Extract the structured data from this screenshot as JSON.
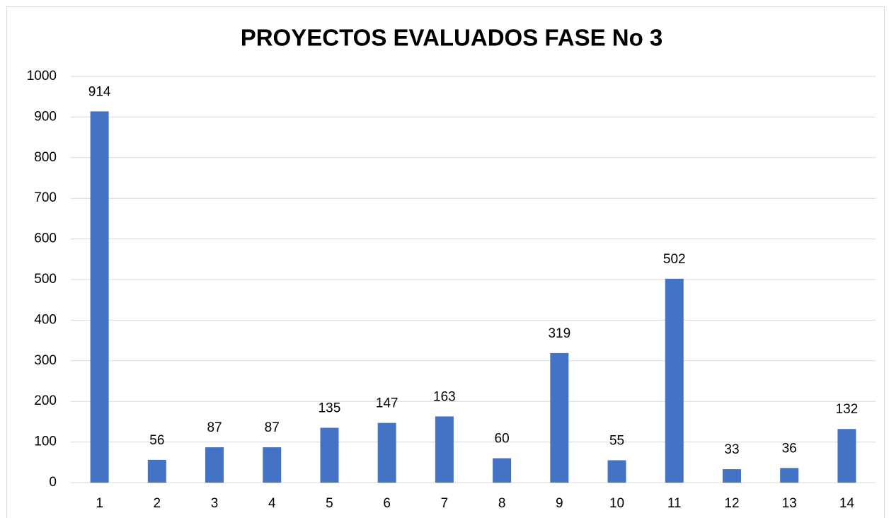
{
  "chart_data": {
    "type": "bar",
    "title": "PROYECTOS EVALUADOS FASE No 3",
    "categories": [
      "1",
      "2",
      "3",
      "4",
      "5",
      "6",
      "7",
      "8",
      "9",
      "10",
      "11",
      "12",
      "13",
      "14"
    ],
    "values": [
      914,
      56,
      87,
      87,
      135,
      147,
      163,
      60,
      319,
      55,
      502,
      33,
      36,
      132
    ],
    "color": "#4472c4",
    "ylim": [
      0,
      1000
    ],
    "yticks": [
      0,
      100,
      200,
      300,
      400,
      500,
      600,
      700,
      800,
      900,
      1000
    ],
    "grid": true,
    "data_labels": true
  }
}
